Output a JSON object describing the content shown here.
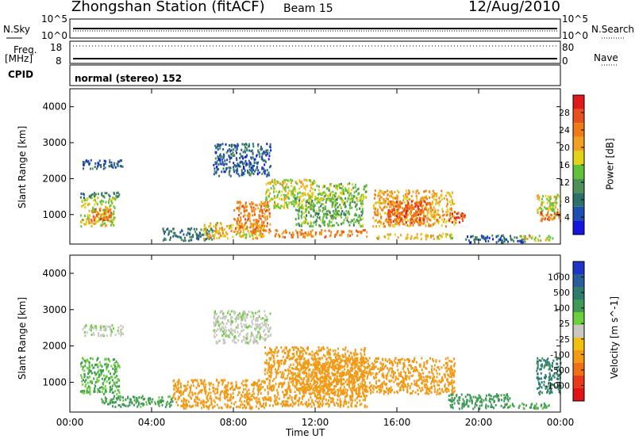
{
  "header": {
    "station": "Zhongshan Station (fitACF)",
    "beam": "Beam 15",
    "date": "12/Aug/2010"
  },
  "panel_labels": {
    "nsky": "N.Sky",
    "nsearch": "N.Search",
    "freq": "Freq.",
    "freq_unit": "[MHz]",
    "nave": "Nave",
    "cpid": "CPID",
    "mode": "normal (stereo) 152",
    "nsky_top": "10^5",
    "nsky_bot": "10^0",
    "nsearch_top": "10^5",
    "nsearch_bot": "10^0",
    "freq_top": "18",
    "freq_bot": "8",
    "nave_top": "80",
    "nave_bot": "0"
  },
  "axes": {
    "xlabel": "Time UT",
    "ylabel": "Slant Range [km]",
    "x_ticks": [
      "00:00",
      "04:00",
      "08:00",
      "12:00",
      "16:00",
      "20:00",
      "00:00"
    ],
    "y_ticks": [
      "1000",
      "2000",
      "3000",
      "4000"
    ]
  },
  "colorbars": {
    "power": {
      "label": "Power [dB]",
      "ticks": [
        "4",
        "8",
        "12",
        "16",
        "20",
        "24",
        "28"
      ],
      "colors": [
        "#1515e0",
        "#1e4fb0",
        "#2f6f6a",
        "#4f8f5a",
        "#5fc33a",
        "#e3d21a",
        "#f2a020",
        "#f07a14",
        "#e8501c",
        "#e01a1a"
      ]
    },
    "velocity": {
      "label": "Velocity [m s^-1]",
      "ticks": [
        "1000",
        "500",
        "100",
        "25",
        "-25",
        "-100",
        "-500",
        "-1000"
      ],
      "colors": [
        "#1d36c8",
        "#2a5e9a",
        "#2f7c6f",
        "#3f9a55",
        "#6ccf3c",
        "#c8c8c0",
        "#f2c010",
        "#f29a14",
        "#f07016",
        "#e83a1a",
        "#e01414"
      ]
    }
  },
  "chart_data": {
    "type": "heatmap",
    "x_range_hours": [
      0,
      24
    ],
    "y_range_km": [
      180,
      4500
    ],
    "power_panel_regions": [
      {
        "t": [
          0.5,
          2.5
        ],
        "r": [
          1500,
          1650
        ],
        "v": 10
      },
      {
        "t": [
          0.5,
          2.2
        ],
        "r": [
          700,
          1500
        ],
        "v": 18
      },
      {
        "t": [
          1.0,
          2.0
        ],
        "r": [
          850,
          1200
        ],
        "v": 26
      },
      {
        "t": [
          0.6,
          2.6
        ],
        "r": [
          2300,
          2550
        ],
        "v": 8
      },
      {
        "t": [
          4.5,
          7.0
        ],
        "r": [
          300,
          650
        ],
        "v": 10
      },
      {
        "t": [
          6.5,
          9.5
        ],
        "r": [
          350,
          800
        ],
        "v": 20
      },
      {
        "t": [
          8.0,
          9.8
        ],
        "r": [
          500,
          1400
        ],
        "v": 24
      },
      {
        "t": [
          7.0,
          9.8
        ],
        "r": [
          2100,
          3000
        ],
        "v": 8
      },
      {
        "t": [
          9.5,
          12.0
        ],
        "r": [
          1200,
          2000
        ],
        "v": 18
      },
      {
        "t": [
          10.0,
          14.5
        ],
        "r": [
          400,
          600
        ],
        "v": 24
      },
      {
        "t": [
          11.0,
          14.3
        ],
        "r": [
          700,
          1500
        ],
        "v": 14
      },
      {
        "t": [
          12.0,
          14.5
        ],
        "r": [
          1400,
          1900
        ],
        "v": 16
      },
      {
        "t": [
          14.8,
          18.8
        ],
        "r": [
          700,
          1700
        ],
        "v": 22
      },
      {
        "t": [
          15.5,
          17.5
        ],
        "r": [
          800,
          1400
        ],
        "v": 27
      },
      {
        "t": [
          15.0,
          18.7
        ],
        "r": [
          350,
          500
        ],
        "v": 20
      },
      {
        "t": [
          18.5,
          19.3
        ],
        "r": [
          800,
          1100
        ],
        "v": 27
      },
      {
        "t": [
          19.3,
          22.5
        ],
        "r": [
          250,
          450
        ],
        "v": 8
      },
      {
        "t": [
          22.0,
          23.6
        ],
        "r": [
          300,
          450
        ],
        "v": 18
      },
      {
        "t": [
          22.8,
          24.0
        ],
        "r": [
          1000,
          1600
        ],
        "v": 18
      },
      {
        "t": [
          23.0,
          24.0
        ],
        "r": [
          850,
          1150
        ],
        "v": 26
      }
    ],
    "velocity_panel_regions": [
      {
        "t": [
          0.5,
          2.4
        ],
        "r": [
          700,
          1700
        ],
        "v": 100
      },
      {
        "t": [
          0.6,
          2.6
        ],
        "r": [
          2300,
          2600
        ],
        "v": 20
      },
      {
        "t": [
          1.5,
          5.0
        ],
        "r": [
          350,
          650
        ],
        "v": 120
      },
      {
        "t": [
          5.0,
          9.5
        ],
        "r": [
          300,
          1100
        ],
        "v": -200
      },
      {
        "t": [
          7.0,
          9.8
        ],
        "r": [
          2100,
          3000
        ],
        "v": 20
      },
      {
        "t": [
          9.5,
          14.5
        ],
        "r": [
          350,
          2000
        ],
        "v": -250
      },
      {
        "t": [
          11.0,
          18.8
        ],
        "r": [
          700,
          1700
        ],
        "v": -200
      },
      {
        "t": [
          18.5,
          21.5
        ],
        "r": [
          300,
          700
        ],
        "v": 150
      },
      {
        "t": [
          21.5,
          23.5
        ],
        "r": [
          300,
          450
        ],
        "v": 120
      },
      {
        "t": [
          22.8,
          24.0
        ],
        "r": [
          700,
          1700
        ],
        "v": 600
      }
    ]
  }
}
